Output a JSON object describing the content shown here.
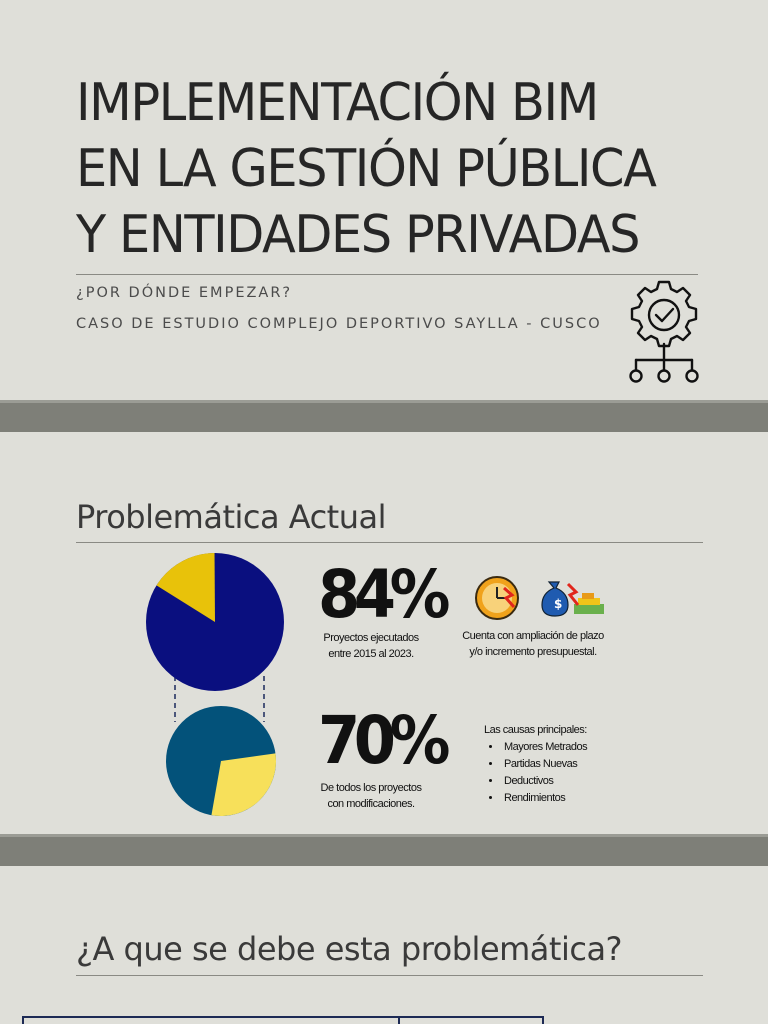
{
  "slide1": {
    "title_lines": [
      "IMPLEMENTACIÓN BIM",
      "EN LA GESTIÓN PÚBLICA",
      "Y ENTIDADES PRIVADAS"
    ],
    "subtitle1": "¿POR DÓNDE EMPEZAR?",
    "subtitle2": "CASO DE ESTUDIO COMPLEJO DEPORTIVO SAYLLA - CUSCO",
    "icon": "gear-checkmark-network-icon"
  },
  "slide2": {
    "heading": "Problemática Actual",
    "stat1": {
      "value": "84%",
      "caption_lines": [
        "Proyectos ejecutados",
        "entre 2015 al 2023."
      ],
      "share": 0.84,
      "colors": {
        "main": "#0a0f7f",
        "rest": "#e8c20a"
      }
    },
    "note1_lines": [
      "Cuenta con ampliación de plazo",
      "y/o incremento presupuestal."
    ],
    "note1_icons": [
      "clock-icon",
      "money-bag-icon"
    ],
    "stat2": {
      "value": "70%",
      "caption_lines": [
        "De todos los proyectos",
        "con modificaciones."
      ],
      "share": 0.7,
      "colors": {
        "main": "#03527a",
        "rest": "#f7e05a"
      }
    },
    "causes_title": "Las causas principales:",
    "causes": [
      "Mayores Metrados",
      "Partidas Nuevas",
      "Deductivos",
      "Rendimientos"
    ]
  },
  "slide3": {
    "heading": "¿A que se debe esta problemática?"
  }
}
